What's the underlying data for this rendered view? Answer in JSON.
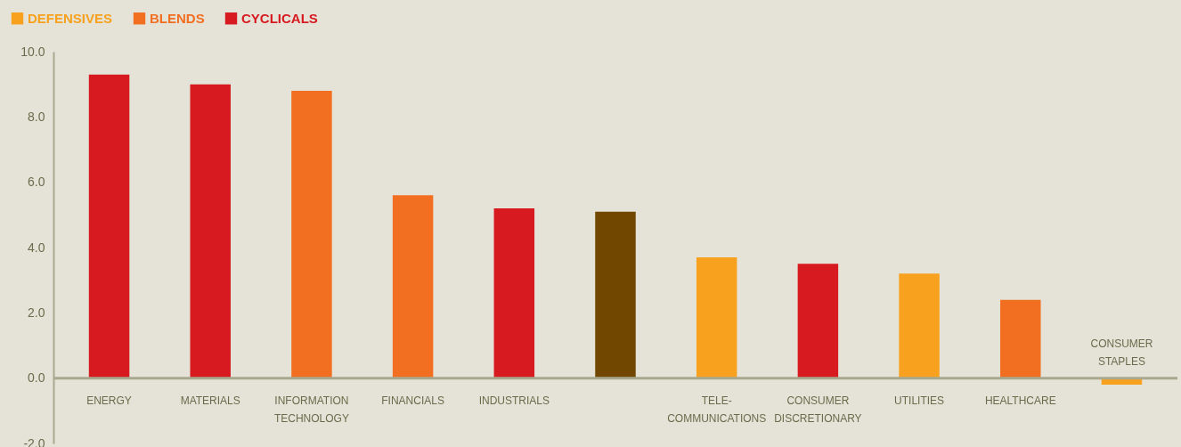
{
  "chart_data": {
    "type": "bar",
    "categories": [
      "ENERGY",
      "MATERIALS",
      "INFORMATION TECHNOLOGY",
      "FINANCIALS",
      "INDUSTRIALS",
      null,
      "TELE-COMMUNICATIONS",
      "CONSUMER DISCRETIONARY",
      "UTILITIES",
      "HEALTHCARE",
      "CONSUMER STAPLES"
    ],
    "series": [
      {
        "name": "DEFENSIVES",
        "color": "#f7a11e",
        "values": [
          null,
          null,
          null,
          null,
          null,
          null,
          3.7,
          null,
          3.2,
          null,
          -0.2
        ]
      },
      {
        "name": "BLENDS",
        "color": "#f26f21",
        "values": [
          null,
          null,
          8.8,
          5.6,
          null,
          null,
          null,
          null,
          null,
          2.4,
          null
        ]
      },
      {
        "name": "CYCLICALS",
        "color": "#d71920",
        "values": [
          9.3,
          9.0,
          null,
          null,
          5.2,
          null,
          null,
          3.5,
          null,
          null,
          null
        ]
      },
      {
        "color": "#714700",
        "values": [
          null,
          null,
          null,
          null,
          null,
          5.1,
          null,
          null,
          null,
          null,
          null
        ]
      }
    ],
    "ylim": [
      -2,
      10
    ],
    "yticks": [
      {
        "value": -2,
        "label": "-2.0"
      },
      {
        "value": 0,
        "label": "0.0"
      },
      {
        "value": 2,
        "label": "2.0"
      },
      {
        "value": 4,
        "label": "4.0"
      },
      {
        "value": 6,
        "label": "6.0"
      },
      {
        "value": 8,
        "label": "8.0"
      },
      {
        "value": 10,
        "label": "10.0"
      }
    ],
    "grid": false,
    "legend": "top left"
  }
}
